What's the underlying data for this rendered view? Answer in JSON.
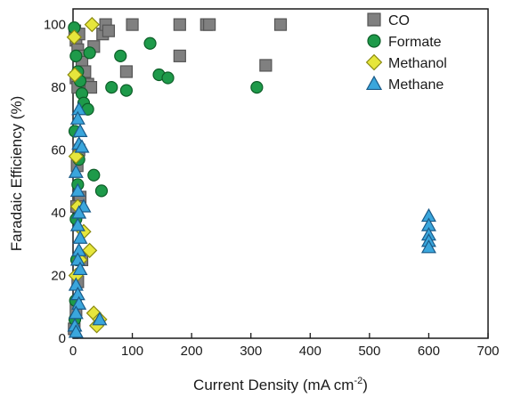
{
  "chart_data": {
    "type": "scatter",
    "title": "",
    "xlabel": "Current Density (mA cm",
    "xlabel_sup": "-2",
    "xlabel_close": ")",
    "ylabel": "Faradaic Efficiency (%)",
    "xlim": [
      0,
      700
    ],
    "ylim": [
      0,
      105
    ],
    "xticks": [
      "0",
      "100",
      "200",
      "300",
      "400",
      "500",
      "600",
      "700"
    ],
    "yticks": [
      "0",
      "20",
      "40",
      "60",
      "80",
      "100"
    ],
    "grid": false,
    "legend_position": "top-right",
    "series": [
      {
        "name": "CO",
        "marker": "square",
        "color": "#808080",
        "stroke": "#555555",
        "points": [
          [
            3,
            98
          ],
          [
            5,
            95
          ],
          [
            8,
            92
          ],
          [
            12,
            90
          ],
          [
            15,
            88
          ],
          [
            20,
            85
          ],
          [
            25,
            81
          ],
          [
            30,
            80
          ],
          [
            35,
            93
          ],
          [
            10,
            97
          ],
          [
            50,
            97
          ],
          [
            55,
            100
          ],
          [
            60,
            98
          ],
          [
            100,
            100
          ],
          [
            180,
            100
          ],
          [
            225,
            100
          ],
          [
            230,
            100
          ],
          [
            350,
            100
          ],
          [
            180,
            90
          ],
          [
            90,
            85
          ],
          [
            325,
            87
          ],
          [
            5,
            83
          ],
          [
            8,
            80
          ],
          [
            10,
            60
          ],
          [
            7,
            55
          ],
          [
            12,
            45
          ],
          [
            6,
            42
          ],
          [
            15,
            25
          ],
          [
            8,
            18
          ],
          [
            5,
            9
          ],
          [
            2,
            3
          ]
        ]
      },
      {
        "name": "Formate",
        "marker": "circle",
        "color": "#1e9a4a",
        "stroke": "#0d5e28",
        "points": [
          [
            2,
            99
          ],
          [
            5,
            90
          ],
          [
            8,
            85
          ],
          [
            12,
            82
          ],
          [
            15,
            78
          ],
          [
            18,
            75
          ],
          [
            25,
            73
          ],
          [
            28,
            91
          ],
          [
            80,
            90
          ],
          [
            130,
            94
          ],
          [
            145,
            84
          ],
          [
            160,
            83
          ],
          [
            310,
            80
          ],
          [
            65,
            80
          ],
          [
            90,
            79
          ],
          [
            3,
            66
          ],
          [
            10,
            57
          ],
          [
            35,
            52
          ],
          [
            48,
            47
          ],
          [
            8,
            49
          ],
          [
            5,
            38
          ],
          [
            6,
            25
          ],
          [
            4,
            12
          ],
          [
            3,
            6
          ]
        ]
      },
      {
        "name": "Methanol",
        "marker": "diamond",
        "color": "#e6e63c",
        "stroke": "#8a8a10",
        "points": [
          [
            2,
            96
          ],
          [
            3,
            84
          ],
          [
            32,
            100
          ],
          [
            5,
            58
          ],
          [
            8,
            42
          ],
          [
            18,
            34
          ],
          [
            28,
            28
          ],
          [
            12,
            25
          ],
          [
            35,
            8
          ],
          [
            45,
            6
          ],
          [
            40,
            4
          ],
          [
            5,
            20
          ]
        ]
      },
      {
        "name": "Methane",
        "marker": "triangle",
        "color": "#3aa6dc",
        "stroke": "#1a5a88",
        "points": [
          [
            10,
            73
          ],
          [
            8,
            70
          ],
          [
            12,
            66
          ],
          [
            10,
            62
          ],
          [
            15,
            61
          ],
          [
            5,
            53
          ],
          [
            8,
            47
          ],
          [
            18,
            42
          ],
          [
            10,
            40
          ],
          [
            8,
            36
          ],
          [
            12,
            32
          ],
          [
            10,
            28
          ],
          [
            8,
            25
          ],
          [
            12,
            22
          ],
          [
            5,
            17
          ],
          [
            8,
            14
          ],
          [
            10,
            11
          ],
          [
            5,
            8
          ],
          [
            3,
            4
          ],
          [
            45,
            6
          ],
          [
            5,
            2
          ],
          [
            600,
            39
          ],
          [
            600,
            36
          ],
          [
            600,
            33
          ],
          [
            600,
            31
          ],
          [
            600,
            29
          ]
        ]
      }
    ]
  }
}
